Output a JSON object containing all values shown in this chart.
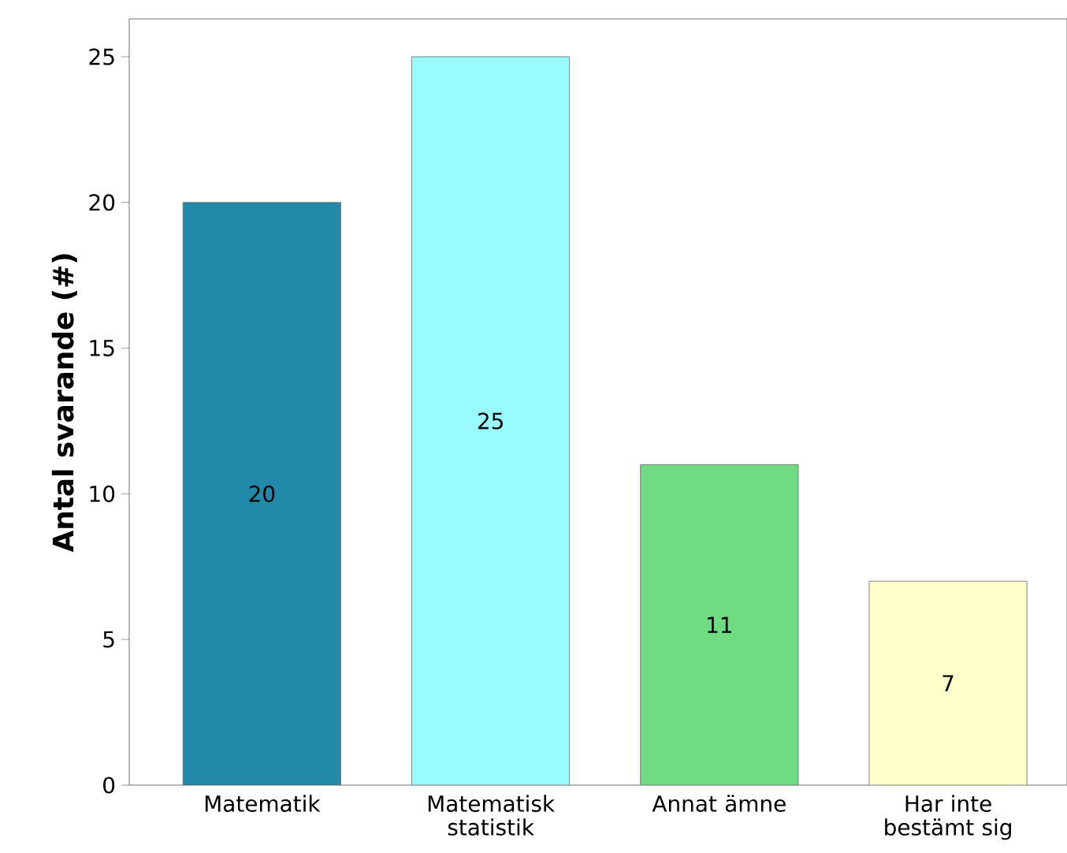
{
  "chart_data": {
    "type": "bar",
    "ylabel": "Antal svarande (#)",
    "categories": [
      "Matematik",
      "Matematisk statistik",
      "Annat ämne",
      "Har inte bestämt sig"
    ],
    "values": [
      20,
      25,
      11,
      7
    ],
    "colors": [
      "#2389ab",
      "#99fbfd",
      "#6fdc83",
      "#ffffcc"
    ],
    "ylim": [
      0,
      26.3
    ],
    "yticks": [
      0,
      5,
      10,
      15,
      20,
      25
    ],
    "data_labels": true
  }
}
